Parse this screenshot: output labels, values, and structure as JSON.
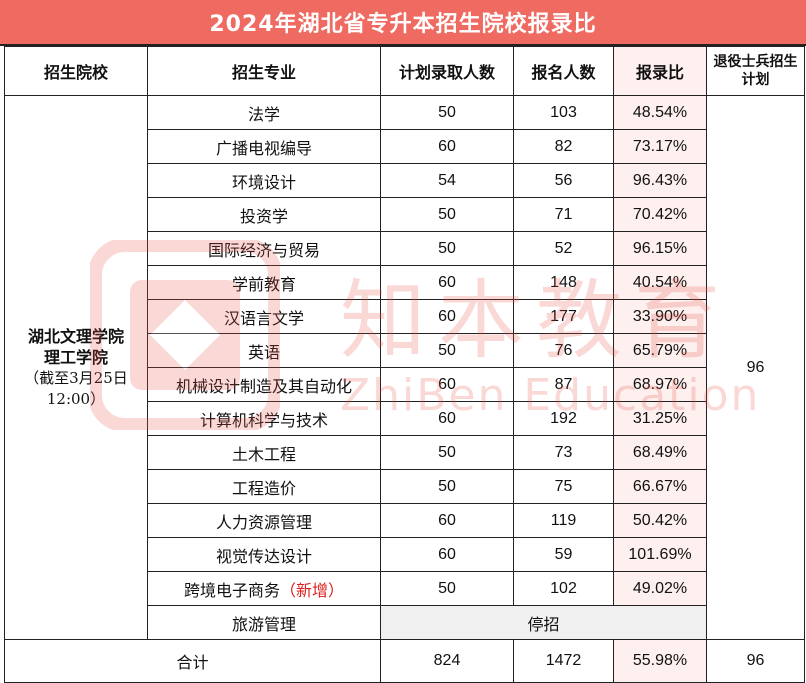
{
  "title": "2024年湖北省专升本招生院校报录比",
  "headers": {
    "school": "招生院校",
    "major": "招生专业",
    "planned": "计划录取人数",
    "applicants": "报名人数",
    "ratio": "报录比",
    "veteran": "退役士兵招生计划"
  },
  "school": {
    "name_line1": "湖北文理学院",
    "name_line2": "理工学院",
    "note_line1": "（截至3月25日",
    "note_line2": "12:00）"
  },
  "rows": [
    {
      "major": "法学",
      "planned": "50",
      "applicants": "103",
      "ratio": "48.54%"
    },
    {
      "major": "广播电视编导",
      "planned": "60",
      "applicants": "82",
      "ratio": "73.17%"
    },
    {
      "major": "环境设计",
      "planned": "54",
      "applicants": "56",
      "ratio": "96.43%"
    },
    {
      "major": "投资学",
      "planned": "50",
      "applicants": "71",
      "ratio": "70.42%"
    },
    {
      "major": "国际经济与贸易",
      "planned": "50",
      "applicants": "52",
      "ratio": "96.15%"
    },
    {
      "major": "学前教育",
      "planned": "60",
      "applicants": "148",
      "ratio": "40.54%"
    },
    {
      "major": "汉语言文学",
      "planned": "60",
      "applicants": "177",
      "ratio": "33.90%"
    },
    {
      "major": "英语",
      "planned": "50",
      "applicants": "76",
      "ratio": "65.79%"
    },
    {
      "major": "机械设计制造及其自动化",
      "planned": "60",
      "applicants": "87",
      "ratio": "68.97%"
    },
    {
      "major": "计算机科学与技术",
      "planned": "60",
      "applicants": "192",
      "ratio": "31.25%"
    },
    {
      "major": "土木工程",
      "planned": "50",
      "applicants": "73",
      "ratio": "68.49%"
    },
    {
      "major": "工程造价",
      "planned": "50",
      "applicants": "75",
      "ratio": "66.67%"
    },
    {
      "major": "人力资源管理",
      "planned": "60",
      "applicants": "119",
      "ratio": "50.42%"
    },
    {
      "major": "视觉传达设计",
      "planned": "60",
      "applicants": "59",
      "ratio": "101.69%"
    }
  ],
  "new_row": {
    "major": "跨境电子商务",
    "tag": "（新增）",
    "planned": "50",
    "applicants": "102",
    "ratio": "49.02%"
  },
  "stopped_row": {
    "major": "旅游管理",
    "status": "停招"
  },
  "veteran_value": "96",
  "total": {
    "label": "合计",
    "planned": "824",
    "applicants": "1472",
    "ratio": "55.98%",
    "veteran": "96"
  },
  "watermark": {
    "text": "知本教育",
    "sub": "ZhiBen Education",
    "color": "#e8524a"
  },
  "colors": {
    "title_bg": "#ef6b62",
    "ratio_bg": "#fdf0ee",
    "new_tag": "#e02020"
  }
}
